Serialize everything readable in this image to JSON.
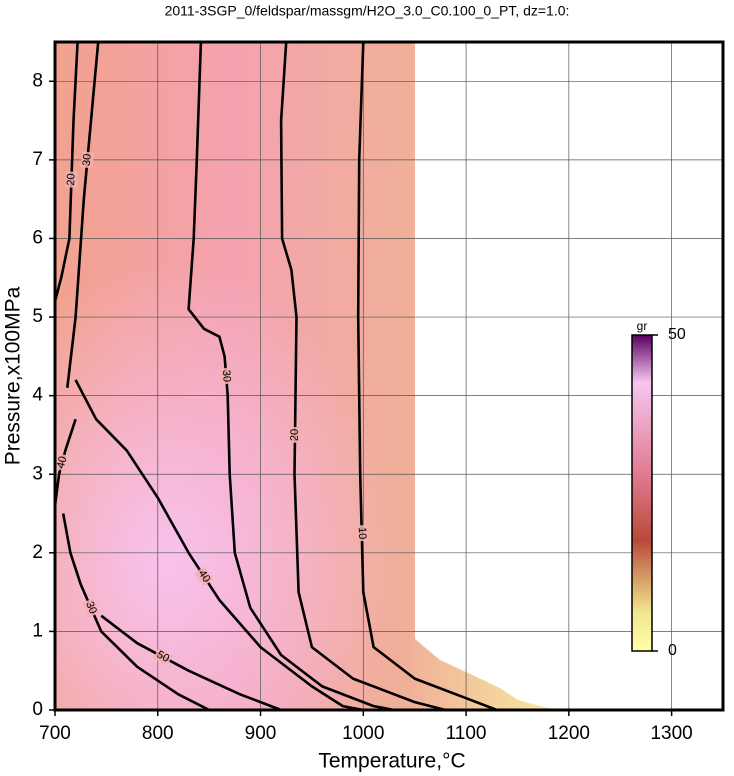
{
  "chart_data": {
    "type": "contour",
    "title": "2011-3SGP_0/feldspar/massgm/H2O_3.0_C0.100_0_PT, dz=1.0:",
    "x_label": "Temperature,°C",
    "y_label": "Pressure,x100MPa",
    "xlim": [
      700,
      1350
    ],
    "ylim": [
      0,
      8.5
    ],
    "xticks": [
      700,
      800,
      900,
      1000,
      1100,
      1200,
      1300
    ],
    "yticks": [
      0,
      1,
      2,
      3,
      4,
      5,
      6,
      7,
      8
    ],
    "grid": true,
    "colorbar": {
      "label": "gr",
      "zlim": [
        0,
        50
      ],
      "ticks": [
        0,
        50
      ]
    },
    "contours": [
      {
        "level": 10,
        "x": [
          1000,
          996,
          995,
          996,
          997,
          1000,
          1010,
          1050,
          1100,
          1130
        ],
        "y": [
          8.5,
          7,
          5,
          4,
          3,
          1.5,
          0.8,
          0.4,
          0.15,
          0
        ]
      },
      {
        "level": 20,
        "x": [
          925,
          920,
          921,
          930,
          935,
          934,
          933,
          937,
          950,
          990,
          1050,
          1080
        ],
        "y": [
          8.5,
          7.5,
          6,
          5.6,
          5,
          4,
          3,
          1.5,
          0.8,
          0.4,
          0.1,
          0
        ]
      },
      {
        "level": 30,
        "x": [
          842,
          838,
          835,
          830,
          845,
          860,
          865,
          868,
          870,
          875,
          890,
          920,
          960,
          1010,
          1030
        ],
        "y": [
          8.5,
          7,
          6,
          5.1,
          4.85,
          4.75,
          4.5,
          4,
          3,
          2,
          1.3,
          0.7,
          0.3,
          0.05,
          0
        ]
      },
      {
        "level": 40,
        "x": [
          720,
          740,
          770,
          800,
          830,
          860,
          900,
          950,
          980,
          1000
        ],
        "y": [
          4.2,
          3.7,
          3.3,
          2.7,
          2,
          1.4,
          0.8,
          0.3,
          0.05,
          0
        ]
      },
      {
        "level": 50,
        "x": [
          745,
          780,
          830,
          880,
          920
        ],
        "y": [
          1.2,
          0.85,
          0.5,
          0.2,
          0
        ]
      },
      {
        "level": 30,
        "x": [
          742,
          735,
          728,
          720,
          712
        ],
        "y": [
          8.5,
          7.5,
          6.5,
          5,
          4.1
        ]
      },
      {
        "level": 30,
        "x": [
          708,
          715,
          725,
          745,
          780,
          820,
          850
        ],
        "y": [
          2.5,
          2,
          1.6,
          1,
          0.55,
          0.2,
          0
        ]
      },
      {
        "level": 20,
        "x": [
          722,
          718,
          714,
          706,
          700
        ],
        "y": [
          8.5,
          7.5,
          6,
          5.5,
          5.2
        ]
      },
      {
        "level": 40,
        "x": [
          700,
          704,
          710,
          720
        ],
        "y": [
          2.6,
          3,
          3.3,
          3.7
        ]
      }
    ]
  }
}
